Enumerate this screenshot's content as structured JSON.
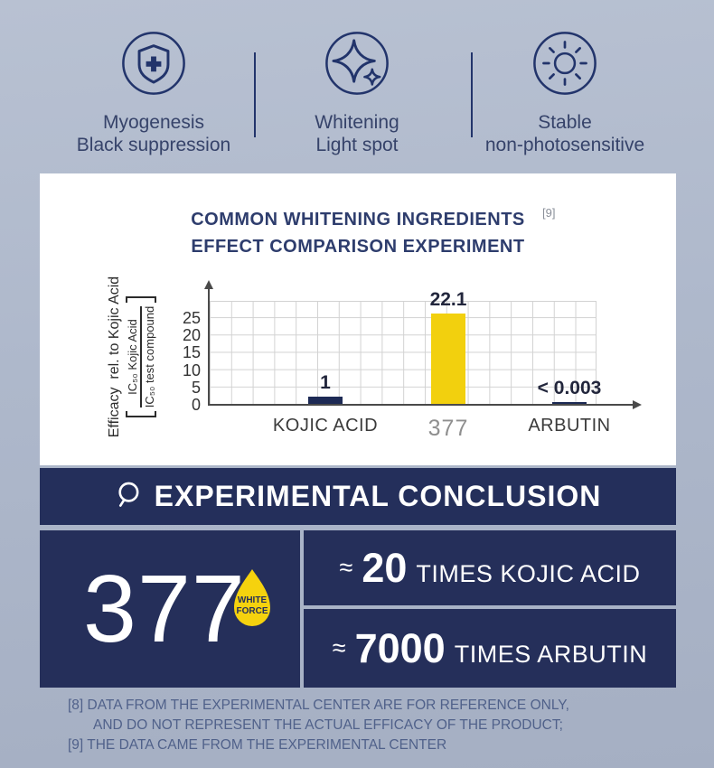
{
  "features": {
    "items": [
      {
        "icon": "shield-plus-icon",
        "line1": "Myogenesis",
        "line2": "Black suppression"
      },
      {
        "icon": "sparkles-icon",
        "line1": "Whitening",
        "line2": "Light spot"
      },
      {
        "icon": "sun-icon",
        "line1": "Stable",
        "line2": "non-photosensitive"
      }
    ]
  },
  "experiment_card": {
    "title_line1": "COMMON WHITENING INGREDIENTS",
    "title_line2": "EFFECT COMPARISON EXPERIMENT",
    "footnote_ref": "[9]"
  },
  "chart_data": {
    "type": "bar",
    "title": "COMMON WHITENING INGREDIENTS EFFECT COMPARISON EXPERIMENT",
    "ylabel_text": "Efficacy  rel. to Kojic Acid",
    "ylabel_fraction_numerator": "IC₅₀ Kojic Acid",
    "ylabel_fraction_denominator": "IC₅₀ test compound",
    "categories": [
      "KOJIC ACID",
      "377",
      "ARBUTIN"
    ],
    "values": [
      1,
      22.1,
      0.003
    ],
    "value_labels": [
      "1",
      "22.1",
      "< 0.003"
    ],
    "bar_colors": [
      "#1d2a55",
      "#f2d00e",
      "#1d2a55"
    ],
    "display_heights": [
      2.5,
      26.5,
      0.8
    ],
    "yticks": [
      0,
      5,
      10,
      15,
      20,
      25
    ],
    "ylim": [
      0,
      30
    ],
    "grid": true,
    "legend": false,
    "xlabel": "",
    "ylabel": "Efficacy rel. to Kojic Acid [ IC50 Kojic Acid / IC50 test compound ]"
  },
  "conclusion_banner": {
    "label": "EXPERIMENTAL CONCLUSION",
    "icon": "magnifier-icon"
  },
  "result_panel": {
    "product_number": "377",
    "drop_badge": {
      "line1": "WHITE",
      "line2": "FORCE",
      "color": "#f5d20e"
    },
    "comparisons": [
      {
        "approx": "≈",
        "factor": "20",
        "suffix": "TIMES KOJIC ACID"
      },
      {
        "approx": "≈",
        "factor": "7000",
        "suffix": "TIMES ARBUTIN"
      }
    ]
  },
  "footnotes": {
    "line1": "[8] DATA FROM THE EXPERIMENTAL CENTER ARE FOR REFERENCE ONLY,",
    "line2": "AND DO NOT REPRESENT THE ACTUAL EFFICACY OF THE PRODUCT;",
    "line3": "[9] THE DATA CAME FROM THE EXPERIMENTAL CENTER"
  },
  "colors": {
    "navy": "#22346b",
    "panel_navy": "#252f5a",
    "accent_yellow": "#f2d00e",
    "card_bg": "#ffffff",
    "page_bg": "#aeb8cb",
    "footnote_text": "#50618a"
  }
}
